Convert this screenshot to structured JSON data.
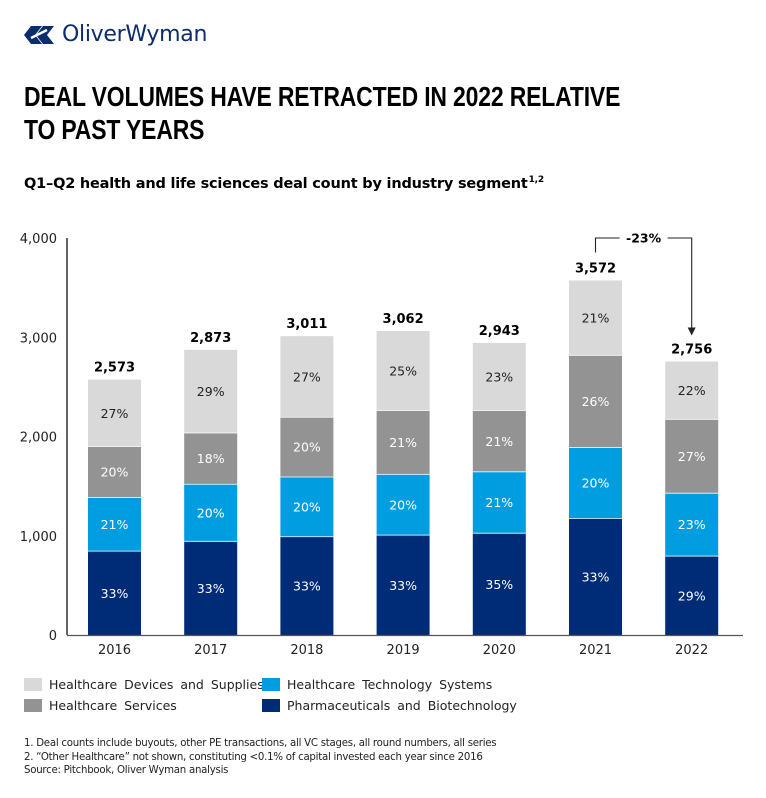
{
  "brand": {
    "name": "OliverWyman",
    "logo_icon": "oliver-wyman-logo-icon",
    "color": "#0a2d6e"
  },
  "header": {
    "title_line1": "DEAL VOLUMES HAVE RETRACTED IN 2022 RELATIVE",
    "title_line2": "TO PAST YEARS",
    "subtitle": "Q1–Q2 health and life sciences deal count by industry segment",
    "subtitle_superscript": "1,2"
  },
  "chart_data": {
    "type": "bar",
    "stacked": true,
    "title": "Q1–Q2 health and life sciences deal count by industry segment",
    "xlabel": "",
    "ylabel": "",
    "ylim": [
      0,
      4000
    ],
    "yticks": [
      0,
      1000,
      2000,
      3000,
      4000
    ],
    "ytick_labels": [
      "0",
      "1,000",
      "2,000",
      "3,000",
      "4,000"
    ],
    "grid": false,
    "categories": [
      "2016",
      "2017",
      "2018",
      "2019",
      "2020",
      "2021",
      "2022"
    ],
    "totals": [
      2573,
      2873,
      3011,
      3062,
      2943,
      3572,
      2756
    ],
    "total_labels": [
      "2,573",
      "2,873",
      "3,011",
      "3,062",
      "2,943",
      "3,572",
      "2,756"
    ],
    "series": [
      {
        "name": "Pharmaceuticals and Biotechnology",
        "color": "#002c77",
        "label_color": "#ffffff",
        "percent": [
          33,
          33,
          33,
          33,
          35,
          33,
          29
        ]
      },
      {
        "name": "Healthcare Technology Systems",
        "color": "#009de0",
        "label_color": "#ffffff",
        "percent": [
          21,
          20,
          20,
          20,
          21,
          20,
          23
        ]
      },
      {
        "name": "Healthcare Services",
        "color": "#939393",
        "label_color": "#ffffff",
        "percent": [
          20,
          18,
          20,
          21,
          21,
          26,
          27
        ]
      },
      {
        "name": "Healthcare Devices and Supplies",
        "color": "#d9d9d9",
        "label_color": "#222222",
        "percent": [
          27,
          29,
          27,
          25,
          23,
          21,
          22
        ]
      }
    ],
    "annotation": {
      "text": "-23%",
      "from": "2021",
      "to": "2022",
      "type": "bracket-arrow"
    },
    "legend_position": "bottom-left"
  },
  "legend": {
    "items": [
      {
        "label": "Healthcare Devices and Supplies",
        "color": "#d9d9d9"
      },
      {
        "label": "Healthcare Technology Systems",
        "color": "#009de0"
      },
      {
        "label": "Healthcare Services",
        "color": "#939393"
      },
      {
        "label": "Pharmaceuticals and Biotechnology",
        "color": "#002c77"
      }
    ]
  },
  "footnotes": {
    "note1": "1. Deal counts include buyouts, other PE transactions, all VC stages, all round numbers, all series",
    "note2": "2. “Other Healthcare” not shown, constituting <0.1% of capital invested each year since 2016",
    "source": "Source: Pitchbook, Oliver Wyman analysis"
  }
}
